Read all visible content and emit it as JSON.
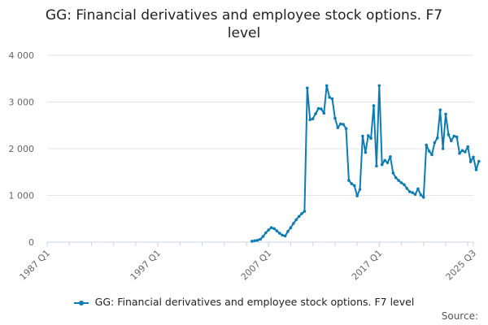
{
  "chart_data": {
    "type": "line",
    "title_line1": "GG: Financial derivatives and employee stock options. F7",
    "title_line2": "level",
    "x_tick_labels": [
      "1987 Q1",
      "1997 Q1",
      "2007 Q1",
      "2017 Q1",
      "2025 Q3"
    ],
    "y_tick_labels": [
      "0",
      "1 000",
      "2 000",
      "3 000",
      "4 000"
    ],
    "y_ticks": [
      0,
      1000,
      2000,
      3000,
      4000
    ],
    "ylim": [
      0,
      4000
    ],
    "x_range": [
      "1987 Q1",
      "2025 Q3"
    ],
    "grid": "horizontal",
    "legend_position": "bottom",
    "source_label": "Source:",
    "colors": {
      "series": "#0b7cb5",
      "grid": "#e5e5e5",
      "axis": "#ccd6eb",
      "tick_text": "#666666"
    },
    "series": [
      {
        "name": "GG: Financial derivatives and employee stock options. F7 level",
        "points": [
          [
            "2005 Q3",
            20
          ],
          [
            "2005 Q4",
            30
          ],
          [
            "2006 Q1",
            40
          ],
          [
            "2006 Q2",
            60
          ],
          [
            "2006 Q3",
            120
          ],
          [
            "2006 Q4",
            200
          ],
          [
            "2007 Q1",
            260
          ],
          [
            "2007 Q2",
            310
          ],
          [
            "2007 Q3",
            290
          ],
          [
            "2007 Q4",
            240
          ],
          [
            "2008 Q1",
            190
          ],
          [
            "2008 Q2",
            150
          ],
          [
            "2008 Q3",
            130
          ],
          [
            "2008 Q4",
            230
          ],
          [
            "2009 Q1",
            310
          ],
          [
            "2009 Q2",
            400
          ],
          [
            "2009 Q3",
            480
          ],
          [
            "2009 Q4",
            550
          ],
          [
            "2010 Q1",
            610
          ],
          [
            "2010 Q2",
            660
          ],
          [
            "2010 Q3",
            3300
          ],
          [
            "2010 Q4",
            2620
          ],
          [
            "2011 Q1",
            2640
          ],
          [
            "2011 Q2",
            2750
          ],
          [
            "2011 Q3",
            2860
          ],
          [
            "2011 Q4",
            2850
          ],
          [
            "2012 Q1",
            2760
          ],
          [
            "2012 Q2",
            3350
          ],
          [
            "2012 Q3",
            3100
          ],
          [
            "2012 Q4",
            3070
          ],
          [
            "2013 Q1",
            2650
          ],
          [
            "2013 Q2",
            2450
          ],
          [
            "2013 Q3",
            2530
          ],
          [
            "2013 Q4",
            2520
          ],
          [
            "2014 Q1",
            2430
          ],
          [
            "2014 Q2",
            1320
          ],
          [
            "2014 Q3",
            1250
          ],
          [
            "2014 Q4",
            1210
          ],
          [
            "2015 Q1",
            990
          ],
          [
            "2015 Q2",
            1130
          ],
          [
            "2015 Q3",
            2270
          ],
          [
            "2015 Q4",
            1920
          ],
          [
            "2016 Q1",
            2280
          ],
          [
            "2016 Q2",
            2220
          ],
          [
            "2016 Q3",
            2920
          ],
          [
            "2016 Q4",
            1630
          ],
          [
            "2017 Q1",
            3350
          ],
          [
            "2017 Q2",
            1660
          ],
          [
            "2017 Q3",
            1750
          ],
          [
            "2017 Q4",
            1700
          ],
          [
            "2018 Q1",
            1830
          ],
          [
            "2018 Q2",
            1480
          ],
          [
            "2018 Q3",
            1380
          ],
          [
            "2018 Q4",
            1320
          ],
          [
            "2019 Q1",
            1270
          ],
          [
            "2019 Q2",
            1230
          ],
          [
            "2019 Q3",
            1150
          ],
          [
            "2019 Q4",
            1080
          ],
          [
            "2020 Q1",
            1060
          ],
          [
            "2020 Q2",
            1020
          ],
          [
            "2020 Q3",
            1140
          ],
          [
            "2020 Q4",
            1010
          ],
          [
            "2021 Q1",
            960
          ],
          [
            "2021 Q2",
            2080
          ],
          [
            "2021 Q3",
            1950
          ],
          [
            "2021 Q4",
            1870
          ],
          [
            "2022 Q1",
            2130
          ],
          [
            "2022 Q2",
            2230
          ],
          [
            "2022 Q3",
            2830
          ],
          [
            "2022 Q4",
            2000
          ],
          [
            "2023 Q1",
            2740
          ],
          [
            "2023 Q2",
            2300
          ],
          [
            "2023 Q3",
            2170
          ],
          [
            "2023 Q4",
            2270
          ],
          [
            "2024 Q1",
            2250
          ],
          [
            "2024 Q2",
            1900
          ],
          [
            "2024 Q3",
            1960
          ],
          [
            "2024 Q4",
            1930
          ],
          [
            "2025 Q1",
            2040
          ],
          [
            "2025 Q2",
            1720
          ],
          [
            "2025 Q3",
            1820
          ],
          [
            "2025 Q4",
            1550
          ],
          [
            "2026 Q1",
            1730
          ]
        ]
      }
    ]
  }
}
